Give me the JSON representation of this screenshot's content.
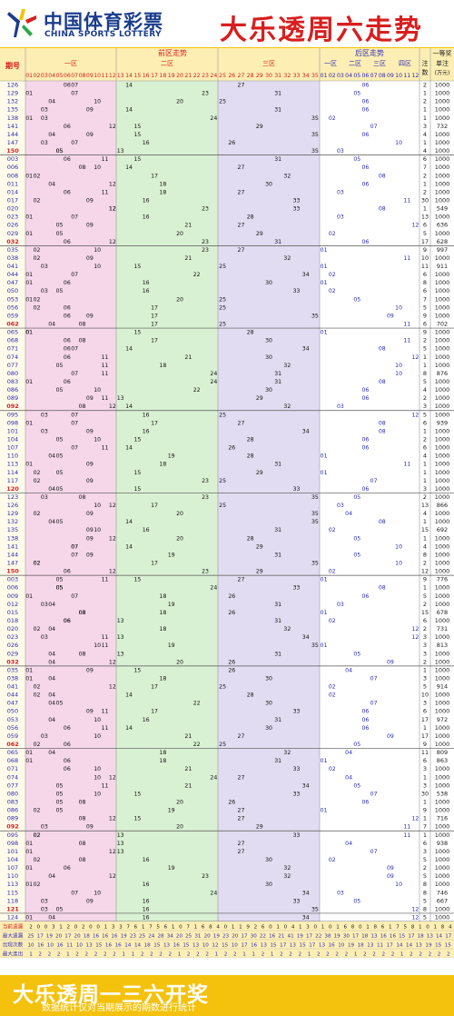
{
  "header": {
    "logo_cn": "中国体育彩票",
    "logo_en": "CHINA SPORTS LOTTERY",
    "title": "大乐透周六走势"
  },
  "table": {
    "col_issue": "期号",
    "front_title": "前区走势",
    "zone1": "一区",
    "zone2": "二区",
    "zone3": "三区",
    "back_title": "后区走势",
    "back_zone1": "一区",
    "back_zone2": "二区",
    "back_zone3": "三区",
    "back_zone4": "四区",
    "col_notes": "注数",
    "col_prize_top": "一等奖",
    "col_prize_bottom": "单注(万元)"
  },
  "colors": {
    "zone1": "#f6d7ea",
    "zone2": "#d9f1d3",
    "zone3": "#e2dcf2",
    "back": "#ffffff",
    "header_band": "#fdeeb4",
    "footer": "#f4c20d",
    "blue": "#2b2bb5",
    "red": "#e02020"
  },
  "blocks": [
    {
      "issues": [
        "126",
        "129",
        "132",
        "135",
        "138",
        "141",
        "144",
        "147",
        "150"
      ],
      "notes": [
        "2",
        "1",
        "2",
        "1",
        "1",
        "3",
        "4",
        "1",
        "4"
      ],
      "prizes": [
        "1000",
        "1000",
        "1000",
        "1000",
        "1000",
        "732",
        "1000",
        "1000",
        "1000"
      ],
      "highlight_last": true
    },
    {
      "issues": [
        "003",
        "006",
        "008",
        "011",
        "014",
        "017",
        "020",
        "023",
        "026",
        "029",
        "032"
      ],
      "notes": [
        "6",
        "7",
        "2",
        "1",
        "2",
        "30",
        "1",
        "13",
        "6",
        "5",
        "17"
      ],
      "prizes": [
        "1000",
        "1000",
        "1000",
        "1000",
        "1000",
        "1000",
        "549",
        "1000",
        "636",
        "1000",
        "628"
      ],
      "highlight_last": true
    },
    {
      "issues": [
        "035",
        "038",
        "041",
        "044",
        "047",
        "050",
        "053",
        "056",
        "059",
        "062"
      ],
      "notes": [
        "9",
        "10",
        "11",
        "6",
        "8",
        "6",
        "7",
        "5",
        "9",
        "6"
      ],
      "prizes": [
        "997",
        "1000",
        "911",
        "1000",
        "1000",
        "1000",
        "1000",
        "1000",
        "1000",
        "702"
      ],
      "highlight_last": true
    },
    {
      "issues": [
        "065",
        "068",
        "071",
        "074",
        "077",
        "080",
        "083",
        "086",
        "089",
        "092"
      ],
      "notes": [
        "9",
        "2",
        "5",
        "1",
        "1",
        "8",
        "5",
        "4",
        "2",
        "3"
      ],
      "prizes": [
        "1000",
        "1000",
        "1000",
        "1000",
        "1000",
        "876",
        "1000",
        "1000",
        "1000",
        "1000"
      ],
      "highlight_last": true
    },
    {
      "issues": [
        "095",
        "098",
        "101",
        "104",
        "107",
        "110",
        "113",
        "114",
        "117",
        "120"
      ],
      "notes": [
        "5",
        "6",
        "1",
        "2",
        "6",
        "4",
        "1",
        "1",
        "1",
        "3"
      ],
      "prizes": [
        "1000",
        "939",
        "1000",
        "1000",
        "1000",
        "1000",
        "1000",
        "1000",
        "1000",
        "1000"
      ],
      "highlight_last": true
    },
    {
      "issues": [
        "123",
        "126",
        "129",
        "132",
        "135",
        "138",
        "141",
        "144",
        "147",
        "150"
      ],
      "notes": [
        "2",
        "13",
        "4",
        "1",
        "15",
        "1",
        "4",
        "8",
        "2",
        "12"
      ],
      "prizes": [
        "1000",
        "866",
        "1000",
        "1000",
        "692",
        "1000",
        "1000",
        "1000",
        "1000",
        "1000"
      ],
      "highlight_last": true
    },
    {
      "issues": [
        "003",
        "006",
        "009",
        "012",
        "015",
        "018",
        "020",
        "023",
        "026",
        "029",
        "032"
      ],
      "notes": [
        "9",
        "1",
        "5",
        "2",
        "15",
        "6",
        "2",
        "3",
        "3",
        "3",
        "2"
      ],
      "prizes": [
        "776",
        "1000",
        "1000",
        "1000",
        "678",
        "1000",
        "731",
        "1000",
        "813",
        "1000",
        "1000"
      ],
      "highlight_last": true
    },
    {
      "issues": [
        "035",
        "038",
        "041",
        "044",
        "047",
        "050",
        "053",
        "056",
        "059",
        "062"
      ],
      "notes": [
        "1",
        "3",
        "5",
        "10",
        "3",
        "6",
        "17",
        "1",
        "17",
        "9"
      ],
      "prizes": [
        "1000",
        "1000",
        "914",
        "1000",
        "1000",
        "1000",
        "972",
        "1000",
        "1000",
        "1000"
      ],
      "highlight_last": true
    },
    {
      "issues": [
        "065",
        "068",
        "071",
        "074",
        "077",
        "080",
        "083",
        "086",
        "089",
        "092"
      ],
      "notes": [
        "11",
        "6",
        "3",
        "1",
        "3",
        "30",
        "1",
        "9",
        "1",
        "7"
      ],
      "prizes": [
        "809",
        "863",
        "1000",
        "1000",
        "1000",
        "538",
        "1000",
        "1000",
        "716",
        "1000"
      ],
      "highlight_last": true
    },
    {
      "issues": [
        "095",
        "098",
        "101",
        "104",
        "107",
        "110",
        "113",
        "115",
        "118",
        "121"
      ],
      "notes": [
        "1",
        "6",
        "3",
        "5",
        "2",
        "5",
        "8",
        "8",
        "5",
        "8"
      ],
      "prizes": [
        "1000",
        "938",
        "1000",
        "1000",
        "1000",
        "1000",
        "1000",
        "746",
        "667",
        "1000"
      ],
      "highlight_last": true
    },
    {
      "issues": [
        "124"
      ],
      "notes": [
        "5"
      ],
      "prizes": [
        "1000"
      ],
      "highlight_last": false
    }
  ],
  "stats": {
    "labels": [
      "当前遗漏",
      "最大遗漏",
      "出现次数",
      "最大连出"
    ],
    "rows": [
      "2 0 0 3 1 2 0 2 0 0 1 3 3 7 6 1 7 5 6 1 0 7 1 6 8 4 0 1 1 9 2 6 0 1 0 4 1 3 0 1 0 1 6 8 0 1 8 6 1 7 5 8 1 0 1 8 4",
      "25 17 19 20 17 20 18 16 16 16 19 23 25 24 28 34 20 25 31 20 19 23 20 17 30 22 16 21 41 19 17 22 38 19 30 17 18 13 16 16 15 17 18 13 14 17",
      "10 16 10 16 11 10 13 15 16 16 14 14 18 15 13 16 15 13 10 12 15 10 17 16 13 15 17 13 15 17 13 16 10 19 18 13 11 17 14 14 13 19 15 15",
      "1 2 2 2 1 2 2 2 2 2 1 1 2 2 2 2 1 2 2 2 1 2 2 1 1 2 1 2 2 2 1 2 2 2 2 1 2 2 2 2 1 2 2 2 2 2"
    ]
  },
  "footer": {
    "title": "大乐透周一三六开奖",
    "note": "数据统计仅对当期展示的期数进行统计"
  }
}
